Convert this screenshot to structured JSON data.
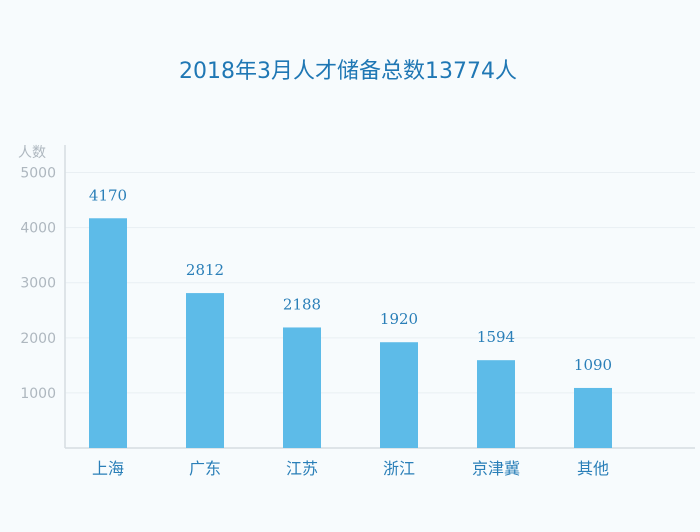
{
  "chart_data": {
    "type": "bar",
    "title": "2018年3月人才储备总数13774人",
    "ylabel": "人数",
    "xlabel": "",
    "categories": [
      "上海",
      "广东",
      "江苏",
      "浙江",
      "京津冀",
      "其他"
    ],
    "values": [
      4170,
      2812,
      2188,
      1920,
      1594,
      1090
    ],
    "data_labels": [
      "4170",
      "2812",
      "2188",
      "1920",
      "1594",
      "1090"
    ],
    "yticks": [
      1000,
      2000,
      3000,
      4000,
      5000
    ],
    "ytick_labels": [
      "1000",
      "2000",
      "3000",
      "4000",
      "5000"
    ],
    "ylim": [
      0,
      5500
    ],
    "grid": true,
    "colors": {
      "bar": "#5dbbe8",
      "title": "#1f77b4",
      "tick": "#aeb7bf",
      "category": "#2a7fb8",
      "axis": "#d6dde2",
      "grid": "#e9eff3"
    }
  }
}
